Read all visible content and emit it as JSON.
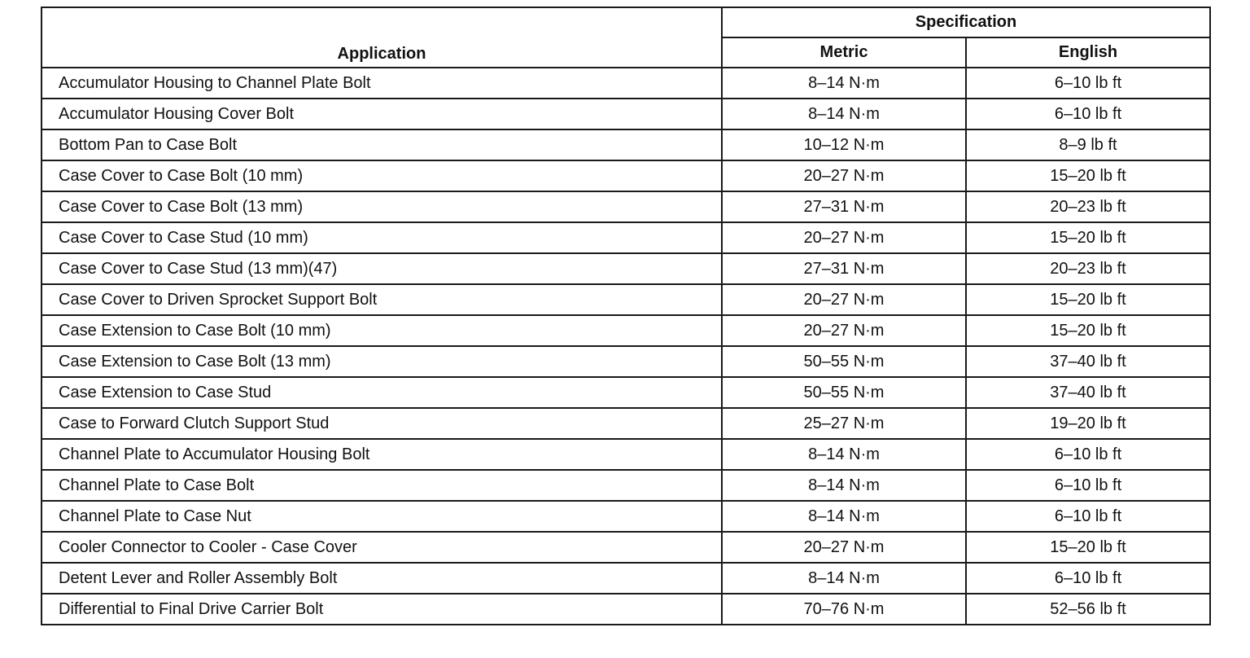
{
  "header": {
    "application": "Application",
    "specification": "Specification",
    "metric": "Metric",
    "english": "English"
  },
  "rows": [
    {
      "application": "Accumulator Housing to Channel Plate Bolt",
      "metric": "8–14 N·m",
      "english": "6–10 lb ft"
    },
    {
      "application": "Accumulator Housing Cover Bolt",
      "metric": "8–14 N·m",
      "english": "6–10 lb ft"
    },
    {
      "application": "Bottom Pan to Case Bolt",
      "metric": "10–12 N·m",
      "english": "8–9 lb ft"
    },
    {
      "application": "Case Cover to Case Bolt (10 mm)",
      "metric": "20–27 N·m",
      "english": "15–20 lb ft"
    },
    {
      "application": "Case Cover to Case Bolt (13 mm)",
      "metric": "27–31 N·m",
      "english": "20–23 lb ft"
    },
    {
      "application": "Case Cover to Case Stud (10 mm)",
      "metric": "20–27 N·m",
      "english": "15–20 lb ft"
    },
    {
      "application": "Case Cover to Case Stud (13 mm)(47)",
      "metric": "27–31 N·m",
      "english": "20–23 lb ft"
    },
    {
      "application": "Case Cover to Driven Sprocket Support Bolt",
      "metric": "20–27 N·m",
      "english": "15–20 lb ft"
    },
    {
      "application": "Case Extension to Case Bolt (10 mm)",
      "metric": "20–27 N·m",
      "english": "15–20 lb ft"
    },
    {
      "application": "Case Extension to Case Bolt (13 mm)",
      "metric": "50–55 N·m",
      "english": "37–40 lb ft"
    },
    {
      "application": "Case Extension to Case Stud",
      "metric": "50–55 N·m",
      "english": "37–40 lb ft"
    },
    {
      "application": "Case to Forward Clutch Support Stud",
      "metric": "25–27 N·m",
      "english": "19–20 lb ft"
    },
    {
      "application": "Channel Plate to Accumulator Housing Bolt",
      "metric": "8–14 N·m",
      "english": "6–10 lb ft"
    },
    {
      "application": "Channel Plate to Case Bolt",
      "metric": "8–14 N·m",
      "english": "6–10 lb ft"
    },
    {
      "application": "Channel Plate to Case Nut",
      "metric": "8–14 N·m",
      "english": "6–10 lb ft"
    },
    {
      "application": "Cooler Connector to Cooler - Case Cover",
      "metric": "20–27 N·m",
      "english": "15–20 lb ft"
    },
    {
      "application": "Detent Lever and Roller Assembly Bolt",
      "metric": "8–14 N·m",
      "english": "6–10 lb ft"
    },
    {
      "application": "Differential to Final Drive Carrier Bolt",
      "metric": "70–76 N·m",
      "english": "52–56 lb ft"
    }
  ]
}
